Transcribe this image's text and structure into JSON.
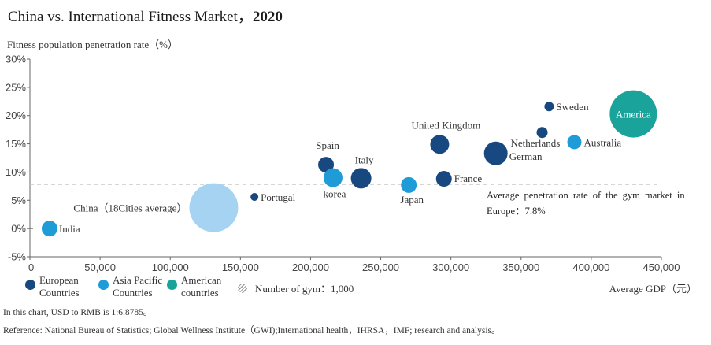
{
  "title": {
    "main": "China vs. International Fitness Market",
    "sep": "，",
    "year": "2020"
  },
  "colors": {
    "european": "#17487f",
    "asia_pacific": "#1f9cd8",
    "american": "#1aa39a",
    "china": "#a6d3f2",
    "avg_line": "#c8c8c8"
  },
  "legend": {
    "items": [
      {
        "key": "european",
        "label": "European Countries"
      },
      {
        "key": "asia_pacific",
        "label": "Asia Pacific Countries"
      },
      {
        "key": "american",
        "label": "American countries"
      }
    ],
    "gym_label": "Number of gym：1,000",
    "gym_icon": "hatched-circle-icon"
  },
  "footnotes": {
    "line1": "In this chart, USD to RMB is 1:6.8785。",
    "line2": "Reference: National Bureau of Statistics; Global Wellness Institute（GWI);International health，IHRSA，IMF; research and analysis。"
  },
  "chart_data": {
    "type": "scatter",
    "title": "China vs. International Fitness Market，2020",
    "xlabel": "Average GDP（元）",
    "ylabel": "Fitness population penetration rate（%）",
    "xlim": [
      0,
      450000
    ],
    "ylim": [
      -5,
      30
    ],
    "x_ticks": [
      0,
      50000,
      100000,
      150000,
      200000,
      250000,
      300000,
      350000,
      400000,
      450000
    ],
    "x_tick_labels": [
      "0",
      "50,000",
      "100,000",
      "150,000",
      "200,000",
      "250,000",
      "300,000",
      "350,000",
      "400,000",
      "450,000"
    ],
    "y_ticks": [
      -5,
      0,
      5,
      10,
      15,
      20,
      25,
      30
    ],
    "y_tick_labels": [
      "-5%",
      "0%",
      "5%",
      "10%",
      "15%",
      "20%",
      "25%",
      "30%"
    ],
    "grid": false,
    "legend_position": "bottom-left",
    "average_line": {
      "value": 7.8,
      "label": "Average penetration rate of the gym market in Europe：7.8%"
    },
    "points": [
      {
        "label": "India",
        "group": "asia_pacific",
        "x": 14000,
        "y": 0.0,
        "r": 10
      },
      {
        "label": "China（18Cities average）",
        "group": "china",
        "x": 131000,
        "y": 3.7,
        "r": 31
      },
      {
        "label": "Portugal",
        "group": "european",
        "x": 160000,
        "y": 5.6,
        "r": 5
      },
      {
        "label": "Spain",
        "group": "european",
        "x": 211000,
        "y": 11.3,
        "r": 10
      },
      {
        "label": "korea",
        "group": "asia_pacific",
        "x": 216000,
        "y": 9.0,
        "r": 12
      },
      {
        "label": "Italy",
        "group": "european",
        "x": 236000,
        "y": 8.9,
        "r": 13
      },
      {
        "label": "Japan",
        "group": "asia_pacific",
        "x": 270000,
        "y": 7.7,
        "r": 10
      },
      {
        "label": "United Kingdom",
        "group": "european",
        "x": 292000,
        "y": 14.9,
        "r": 12
      },
      {
        "label": "France",
        "group": "european",
        "x": 295000,
        "y": 8.8,
        "r": 10
      },
      {
        "label": "German",
        "group": "european",
        "x": 332000,
        "y": 13.3,
        "r": 15
      },
      {
        "label": "Netherlands",
        "group": "european",
        "x": 365000,
        "y": 17.0,
        "r": 7
      },
      {
        "label": "Sweden",
        "group": "european",
        "x": 370000,
        "y": 21.6,
        "r": 6
      },
      {
        "label": "Australia",
        "group": "asia_pacific",
        "x": 388000,
        "y": 15.3,
        "r": 9
      },
      {
        "label": "America",
        "group": "american",
        "x": 430000,
        "y": 20.3,
        "r": 30
      }
    ]
  }
}
